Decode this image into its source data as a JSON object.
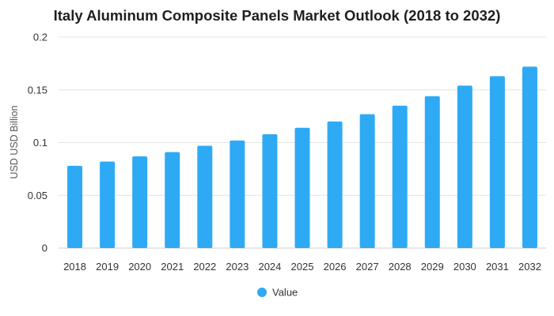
{
  "chart_data": {
    "type": "bar",
    "title": "Italy Aluminum Composite Panels Market Outlook (2018 to 2032)",
    "xlabel": "",
    "ylabel": "USD USD Billion",
    "categories": [
      "2018",
      "2019",
      "2020",
      "2021",
      "2022",
      "2023",
      "2024",
      "2025",
      "2026",
      "2027",
      "2028",
      "2029",
      "2030",
      "2031",
      "2032"
    ],
    "series": [
      {
        "name": "Value",
        "color": "#2eaaf5",
        "values": [
          0.078,
          0.082,
          0.087,
          0.091,
          0.097,
          0.102,
          0.108,
          0.114,
          0.12,
          0.127,
          0.135,
          0.144,
          0.154,
          0.163,
          0.172
        ]
      }
    ],
    "ylim": [
      0,
      0.2
    ],
    "yticks": [
      0,
      0.05,
      0.1,
      0.15,
      0.2
    ],
    "ytick_labels": [
      "0",
      "0.05",
      "0.1",
      "0.15",
      "0.2"
    ],
    "grid": true,
    "legend_position": "bottom-center"
  }
}
